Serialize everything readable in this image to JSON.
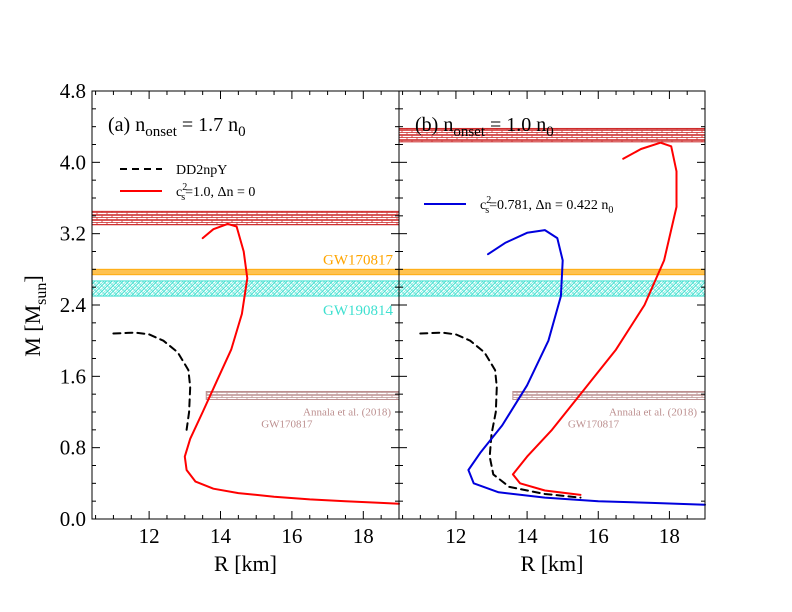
{
  "chart_data": [
    {
      "type": "line",
      "panel_label": "(a) n",
      "panel_label_sub": "onset",
      "panel_label_rest": " = 1.7 n",
      "panel_label_sub2": "0",
      "xlabel": "R [km]",
      "ylabel": "M [M",
      "ylabel_sub": "sun",
      "ylabel_end": "]",
      "xlim": [
        10.4,
        19.0
      ],
      "ylim": [
        0.0,
        4.8
      ],
      "xticks": [
        "12",
        "14",
        "16",
        "18"
      ],
      "yticks": [
        "0.0",
        "0.8",
        "1.6",
        "2.4",
        "3.2",
        "4.0",
        "4.8"
      ],
      "bands": [
        {
          "name": "max-mass-band",
          "y": [
            3.3,
            3.45
          ],
          "color": "#cc2222"
        },
        {
          "name": "GW170817-band",
          "y": [
            2.74,
            2.8
          ],
          "color": "#ffa500",
          "label": "GW170817",
          "label_color": "#ffa500"
        },
        {
          "name": "GW190814-band",
          "y": [
            2.5,
            2.67
          ],
          "color": "#40e0d0",
          "label": "GW190814",
          "label_color": "#40e0d0"
        },
        {
          "name": "annala-band",
          "y": [
            1.34,
            1.43
          ],
          "x_from": 13.6,
          "color": "#bc8f8f",
          "label": "Annala et al. (2018)",
          "label2": "GW170817",
          "label_color": "#bc8f8f"
        }
      ],
      "legend": [
        {
          "label": "DD2npY",
          "color": "#000000",
          "dash": "7,5"
        },
        {
          "label_pre": "c",
          "label_sup": "2",
          "label_sub": "s",
          "label_post": "=1.0, Δn = 0",
          "color": "#ff0000"
        }
      ],
      "series": [
        {
          "name": "DD2npY",
          "color": "#000000",
          "dash": "7,5",
          "points": [
            [
              11.0,
              2.08
            ],
            [
              11.6,
              2.09
            ],
            [
              12.0,
              2.07
            ],
            [
              12.4,
              2.0
            ],
            [
              12.8,
              1.87
            ],
            [
              13.1,
              1.67
            ],
            [
              13.15,
              1.48
            ],
            [
              13.12,
              1.2
            ],
            [
              13.05,
              1.0
            ]
          ]
        },
        {
          "name": "cs2=1.0, dn=0",
          "color": "#ff0000",
          "points": [
            [
              13.5,
              3.15
            ],
            [
              13.8,
              3.25
            ],
            [
              14.2,
              3.31
            ],
            [
              14.45,
              3.28
            ],
            [
              14.65,
              3.0
            ],
            [
              14.75,
              2.7
            ],
            [
              14.6,
              2.3
            ],
            [
              14.3,
              1.9
            ],
            [
              13.9,
              1.55
            ],
            [
              13.5,
              1.2
            ],
            [
              13.15,
              0.9
            ],
            [
              13.0,
              0.7
            ],
            [
              13.05,
              0.55
            ],
            [
              13.3,
              0.42
            ],
            [
              13.8,
              0.34
            ],
            [
              14.5,
              0.29
            ],
            [
              15.5,
              0.25
            ],
            [
              16.5,
              0.22
            ],
            [
              17.5,
              0.2
            ],
            [
              18.5,
              0.18
            ],
            [
              19.0,
              0.17
            ]
          ]
        }
      ]
    },
    {
      "type": "line",
      "panel_label": "(b) n",
      "panel_label_sub": "onset",
      "panel_label_rest": " = 1.0 n",
      "panel_label_sub2": "0",
      "xlabel": "R [km]",
      "xlim": [
        10.4,
        19.0
      ],
      "ylim": [
        0.0,
        4.8
      ],
      "xticks": [
        "12",
        "14",
        "16",
        "18"
      ],
      "bands": [
        {
          "name": "max-mass-band",
          "y": [
            4.23,
            4.38
          ],
          "color": "#cc2222"
        },
        {
          "name": "GW170817-band",
          "y": [
            2.74,
            2.8
          ],
          "color": "#ffa500"
        },
        {
          "name": "GW190814-band",
          "y": [
            2.5,
            2.67
          ],
          "color": "#40e0d0"
        },
        {
          "name": "annala-band",
          "y": [
            1.34,
            1.43
          ],
          "x_from": 13.6,
          "color": "#bc8f8f",
          "label": "Annala et al. (2018)",
          "label2": "GW170817",
          "label_color": "#bc8f8f"
        }
      ],
      "legend": [
        {
          "label_pre": "c",
          "label_sup": "2",
          "label_sub": "s",
          "label_post": "=0.781, Δn = 0.422 n",
          "label_sub_end": "0",
          "color": "#0000dd"
        }
      ],
      "series": [
        {
          "name": "DD2npY",
          "color": "#000000",
          "dash": "7,5",
          "points": [
            [
              11.0,
              2.08
            ],
            [
              11.6,
              2.09
            ],
            [
              12.0,
              2.07
            ],
            [
              12.4,
              2.0
            ],
            [
              12.8,
              1.87
            ],
            [
              13.1,
              1.67
            ],
            [
              13.15,
              1.48
            ],
            [
              13.12,
              1.2
            ],
            [
              13.0,
              0.95
            ],
            [
              12.95,
              0.7
            ],
            [
              13.05,
              0.5
            ],
            [
              13.5,
              0.36
            ],
            [
              14.5,
              0.28
            ],
            [
              15.5,
              0.24
            ]
          ]
        },
        {
          "name": "cs2=0.781, dn=0.422 n0",
          "color": "#0000dd",
          "points": [
            [
              12.9,
              2.97
            ],
            [
              13.4,
              3.1
            ],
            [
              14.0,
              3.21
            ],
            [
              14.5,
              3.24
            ],
            [
              14.85,
              3.15
            ],
            [
              15.0,
              2.9
            ],
            [
              14.95,
              2.5
            ],
            [
              14.6,
              2.0
            ],
            [
              14.0,
              1.5
            ],
            [
              13.3,
              1.05
            ],
            [
              12.7,
              0.75
            ],
            [
              12.35,
              0.55
            ],
            [
              12.5,
              0.4
            ],
            [
              13.2,
              0.3
            ],
            [
              14.5,
              0.24
            ],
            [
              16.0,
              0.2
            ],
            [
              17.5,
              0.18
            ],
            [
              19.0,
              0.16
            ]
          ]
        },
        {
          "name": "cs2=1.0, dn=0",
          "color": "#ff0000",
          "points": [
            [
              16.7,
              4.04
            ],
            [
              17.2,
              4.15
            ],
            [
              17.75,
              4.22
            ],
            [
              18.05,
              4.18
            ],
            [
              18.2,
              3.9
            ],
            [
              18.2,
              3.5
            ],
            [
              17.85,
              2.9
            ],
            [
              17.3,
              2.4
            ],
            [
              16.5,
              1.9
            ],
            [
              15.6,
              1.45
            ],
            [
              14.7,
              1.0
            ],
            [
              14.0,
              0.7
            ],
            [
              13.6,
              0.5
            ],
            [
              13.8,
              0.4
            ],
            [
              14.5,
              0.32
            ],
            [
              15.5,
              0.27
            ]
          ]
        }
      ]
    }
  ]
}
